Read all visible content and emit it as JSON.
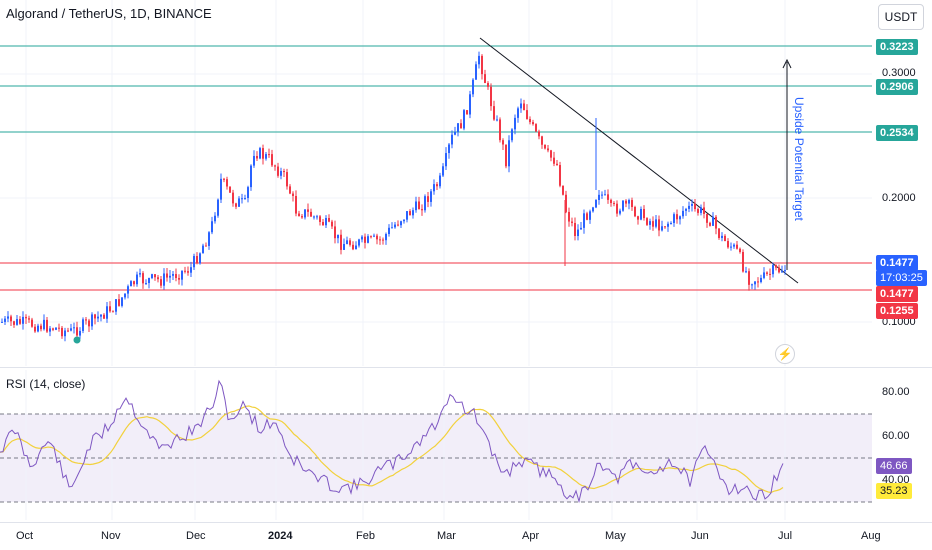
{
  "header": {
    "symbol_title": "Algorand / TetherUS, 1D, BINANCE",
    "currency_button": "USDT"
  },
  "price_axis": {
    "ticks": [
      "0.3000",
      "0.2000",
      "0.1000"
    ],
    "tags": {
      "level_0_3223": "0.3223",
      "level_0_2906": "0.2906",
      "level_0_2534": "0.2534",
      "current_price": "0.1477",
      "countdown": "17:03:25",
      "level_0_1477": "0.1477",
      "level_0_1255": "0.1255"
    }
  },
  "rsi": {
    "title": "RSI (14, close)",
    "ticks": [
      "80.00",
      "60.00",
      "40.00"
    ],
    "rsi_value": "46.66",
    "ma_value": "35.23"
  },
  "time_axis": {
    "labels": [
      "Oct",
      "Nov",
      "Dec",
      "2024",
      "Feb",
      "Mar",
      "Apr",
      "May",
      "Jun",
      "Jul",
      "Aug"
    ]
  },
  "annotations": {
    "target_text": "Upside Potential Target"
  },
  "colors": {
    "up": "#2962ff",
    "down": "#f23645",
    "green_level": "#26a69a",
    "red_level": "#f23645",
    "trendline": "#131722",
    "rsi_line": "#7e57c2",
    "rsi_ma": "#f2d13c",
    "rsi_band": "#7e57c2"
  },
  "icons": {
    "alert_icon": "lightning-icon"
  }
}
